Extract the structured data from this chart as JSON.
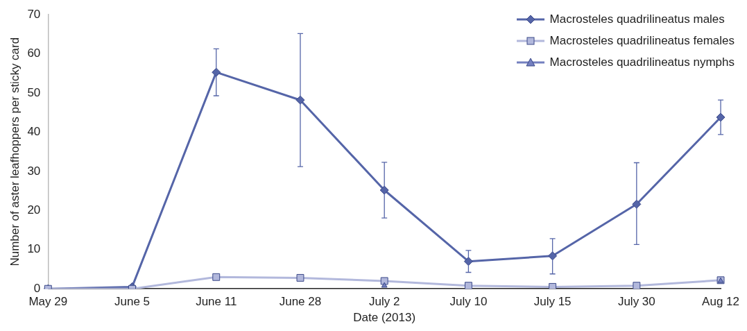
{
  "chart_data": {
    "type": "line",
    "xlabel": "Date (2013)",
    "ylabel": "Number of aster leafhoppers per sticky card",
    "categories": [
      "May 29",
      "June 5",
      "June 11",
      "June 28",
      "July 2",
      "July 10",
      "July 15",
      "July 30",
      "Aug 12"
    ],
    "ylim": [
      0,
      70
    ],
    "yticks": [
      0,
      10,
      20,
      30,
      40,
      50,
      60,
      70
    ],
    "grid": false,
    "legend": "top right",
    "line_style": "solid",
    "series": [
      {
        "name": "Macrosteles quadrilineatus males",
        "color": "#5565a8",
        "marker": "diamond",
        "values": [
          0,
          0.5,
          55.3,
          48.2,
          25.2,
          7,
          8.4,
          21.6,
          43.8
        ],
        "errors": [
          null,
          null,
          [
            49.3,
            61.3
          ],
          [
            31.2,
            65.2
          ],
          [
            18.1,
            32.3
          ],
          [
            4.2,
            9.8
          ],
          [
            3.8,
            12.8
          ],
          [
            11.3,
            32.2
          ],
          [
            39.4,
            48.2
          ]
        ]
      },
      {
        "name": "Macrosteles quadrilineatus females",
        "color": "#b2b8dc",
        "marker": "square",
        "values": [
          0,
          0,
          3,
          2.8,
          2,
          0.8,
          0.5,
          0.8,
          2.2
        ]
      },
      {
        "name": "Macrosteles quadrilineatus nymphs",
        "type": "scatter",
        "color": "#7480c0",
        "marker": "triangle",
        "values": [
          null,
          null,
          null,
          null,
          0.8,
          null,
          null,
          null,
          2
        ]
      }
    ]
  }
}
